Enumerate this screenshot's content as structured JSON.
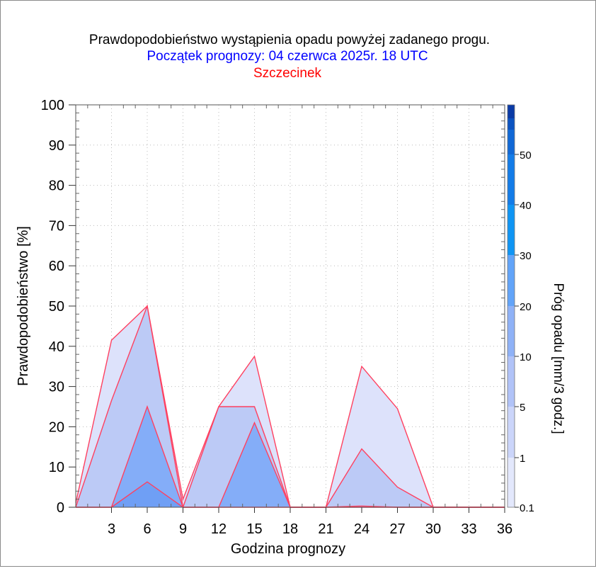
{
  "chart_data": {
    "type": "area",
    "title": "Prawdopodobieństwo wystąpienia opadu powyżej zadanego progu.",
    "subtitle": "Początek prognozy: 04 czerwca 2025r. 18 UTC",
    "location": "Szczecinek",
    "xlabel": "Godzina prognozy",
    "ylabel": "Prawdopodobieństwo [%]",
    "colorbar_label": "Próg opadu [mm/3 godz.]",
    "x": [
      0,
      3,
      6,
      9,
      12,
      15,
      18,
      21,
      24,
      27,
      30,
      33,
      36
    ],
    "xticks": [
      "3",
      "6",
      "9",
      "12",
      "15",
      "18",
      "21",
      "24",
      "27",
      "30",
      "33",
      "36"
    ],
    "xtick_values": [
      3,
      6,
      9,
      12,
      15,
      18,
      21,
      24,
      27,
      30,
      33,
      36
    ],
    "xlim": [
      0,
      36
    ],
    "ylim": [
      0,
      100
    ],
    "yticks": [
      "0",
      "10",
      "20",
      "30",
      "40",
      "50",
      "60",
      "70",
      "80",
      "90",
      "100"
    ],
    "grid": true,
    "series": [
      {
        "name": "0.1",
        "color": "#dde2fb",
        "values": [
          1,
          41.5,
          50,
          2,
          25,
          37.5,
          0,
          0,
          35,
          24.5,
          0,
          0,
          0
        ]
      },
      {
        "name": "1",
        "color": "#bccaf6",
        "values": [
          0,
          26.5,
          50,
          0,
          25,
          25,
          0,
          0,
          14.5,
          5,
          0,
          0,
          0
        ]
      },
      {
        "name": "5",
        "color": "#84adf8",
        "values": [
          0,
          0,
          25,
          0,
          0,
          21,
          0,
          0,
          0.3,
          0,
          0,
          0,
          0
        ]
      },
      {
        "name": "10",
        "color": "#6f9ff5",
        "values": [
          0,
          0,
          6.3,
          0,
          0,
          0,
          0,
          0,
          0,
          0,
          0,
          0,
          0
        ]
      }
    ],
    "colorbar": {
      "ticks": [
        "0.1",
        "1",
        "5",
        "10",
        "20",
        "30",
        "40",
        "50"
      ],
      "colors": [
        "#e3e8fc",
        "#cbd5fa",
        "#b1c3f8",
        "#8fb2f7",
        "#62a4f9",
        "#0f95f4",
        "#137ce8",
        "#1068d6",
        "#0b53c1",
        "#0a3aa6"
      ]
    }
  }
}
